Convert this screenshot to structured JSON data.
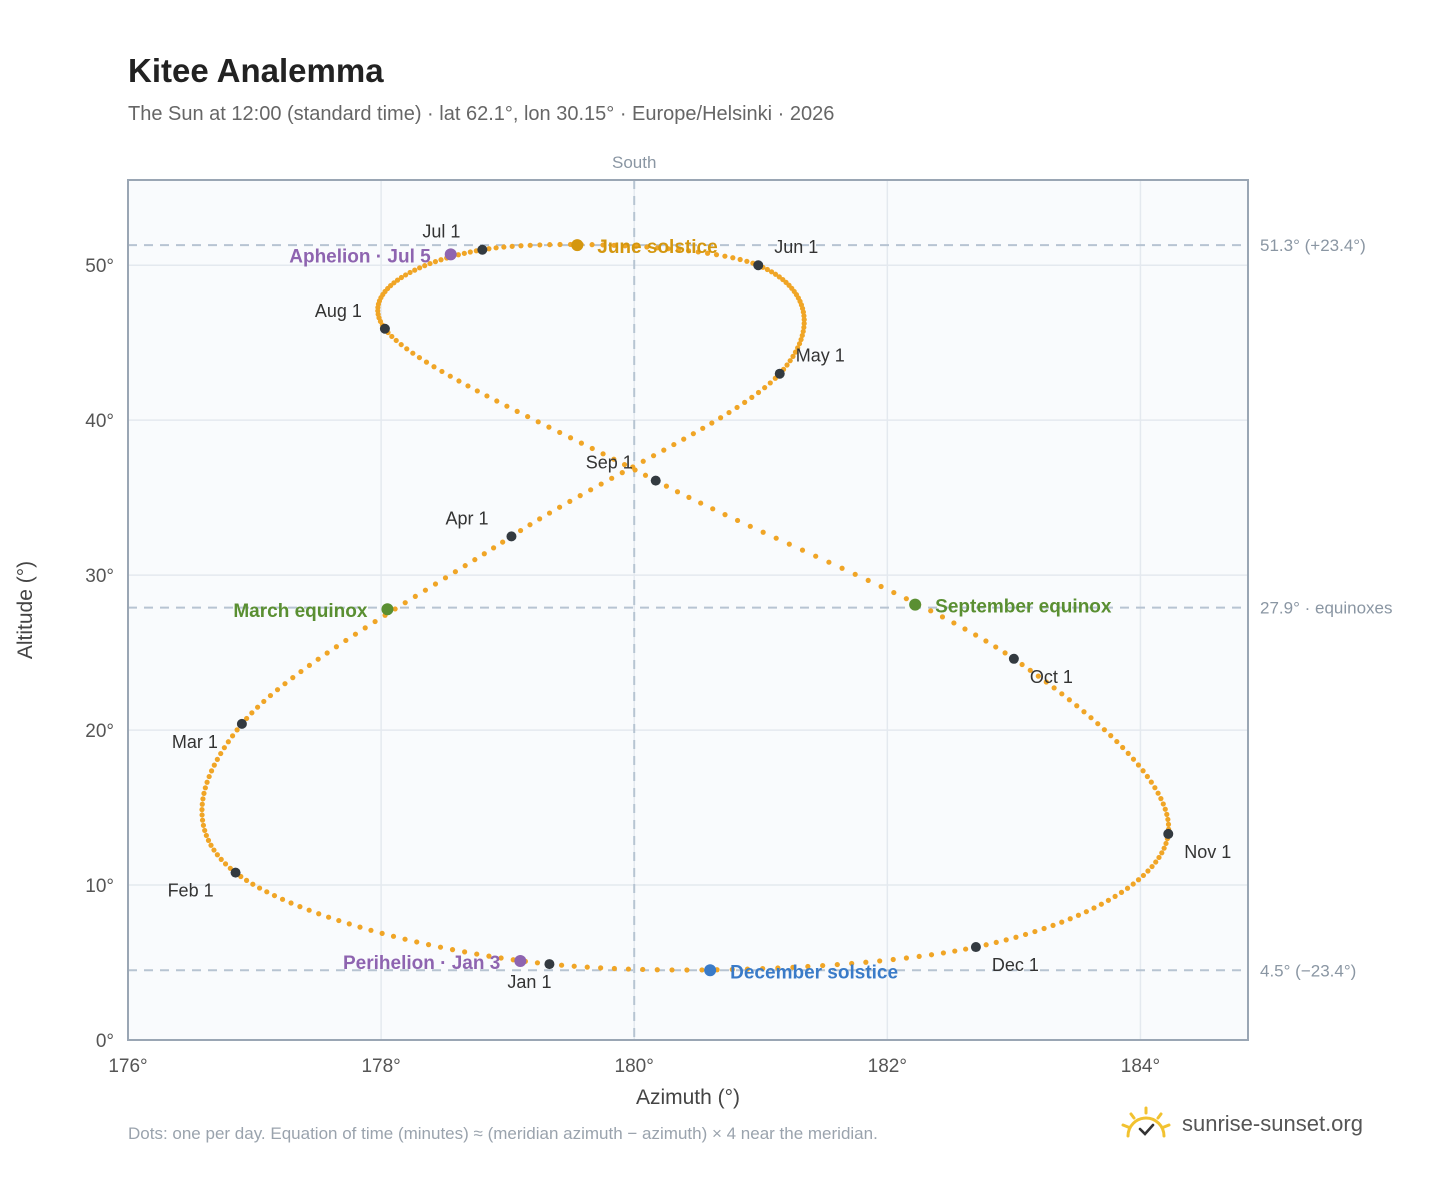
{
  "header": {
    "title": "Kitee Analemma",
    "subtitle": "The Sun at 12:00 (standard time) · lat 62.1°, lon 30.15° · Europe/Helsinki · 2026"
  },
  "footer": {
    "note": "Dots: one per day. Equation of time (minutes) ≈ (meridian azimuth − azimuth) × 4 near the meridian.",
    "brand": "sunrise-sunset.org"
  },
  "colors": {
    "curve": "#f0a526",
    "month_marker": "#333a40",
    "solstice_june": "#d4970f",
    "solstice_december": "#3a7bc8",
    "equinox": "#5a8f32",
    "apsis": "#8e64b0",
    "reference_line": "#b7c4d2",
    "grid": "#e4e9ef",
    "plot_bg": "#f9fbfd",
    "frame": "#9aa6b4"
  },
  "chart_data": {
    "type": "scatter",
    "title": "Kitee Analemma",
    "xlabel": "Azimuth (°)",
    "ylabel": "Altitude (°)",
    "xlim": [
      176,
      184.85
    ],
    "ylim": [
      0,
      55.5
    ],
    "xticks": [
      176,
      178,
      180,
      182,
      184
    ],
    "xtick_labels": [
      "176°",
      "178°",
      "180°",
      "182°",
      "184°"
    ],
    "yticks": [
      0,
      10,
      20,
      30,
      40,
      50
    ],
    "ytick_labels": [
      "0°",
      "10°",
      "20°",
      "30°",
      "40°",
      "50°"
    ],
    "grid": true,
    "meridian": {
      "x": 180,
      "label": "South"
    },
    "reference_lines": [
      {
        "y": 51.3,
        "label": "51.3° (+23.4°)"
      },
      {
        "y": 27.9,
        "label": "27.9° · equinoxes"
      },
      {
        "y": 4.5,
        "label": "4.5° (−23.4°)"
      }
    ],
    "month_markers": [
      {
        "label": "Jan 1",
        "x": 179.33,
        "y": 4.9
      },
      {
        "label": "Feb 1",
        "x": 176.85,
        "y": 10.8
      },
      {
        "label": "Mar 1",
        "x": 176.9,
        "y": 20.4
      },
      {
        "label": "Apr 1",
        "x": 179.03,
        "y": 32.5
      },
      {
        "label": "May 1",
        "x": 181.15,
        "y": 43.0
      },
      {
        "label": "Jun 1",
        "x": 180.98,
        "y": 50.0
      },
      {
        "label": "Jul 1",
        "x": 178.8,
        "y": 51.0
      },
      {
        "label": "Aug 1",
        "x": 178.03,
        "y": 45.9
      },
      {
        "label": "Sep 1",
        "x": 180.17,
        "y": 36.1
      },
      {
        "label": "Oct 1",
        "x": 183.0,
        "y": 24.6
      },
      {
        "label": "Nov 1",
        "x": 184.22,
        "y": 13.3
      },
      {
        "label": "Dec 1",
        "x": 182.7,
        "y": 6.0
      }
    ],
    "events": [
      {
        "label": "June solstice",
        "x": 179.55,
        "y": 51.3,
        "kind": "solstice_june"
      },
      {
        "label": "December solstice",
        "x": 180.6,
        "y": 4.5,
        "kind": "solstice_december"
      },
      {
        "label": "March equinox",
        "x": 178.05,
        "y": 27.8,
        "kind": "equinox"
      },
      {
        "label": "September equinox",
        "x": 182.22,
        "y": 28.1,
        "kind": "equinox"
      },
      {
        "label": "Aphelion · Jul 5",
        "x": 178.55,
        "y": 50.7,
        "kind": "apsis"
      },
      {
        "label": "Perihelion · Jan 3",
        "x": 179.1,
        "y": 5.1,
        "kind": "apsis"
      }
    ]
  }
}
